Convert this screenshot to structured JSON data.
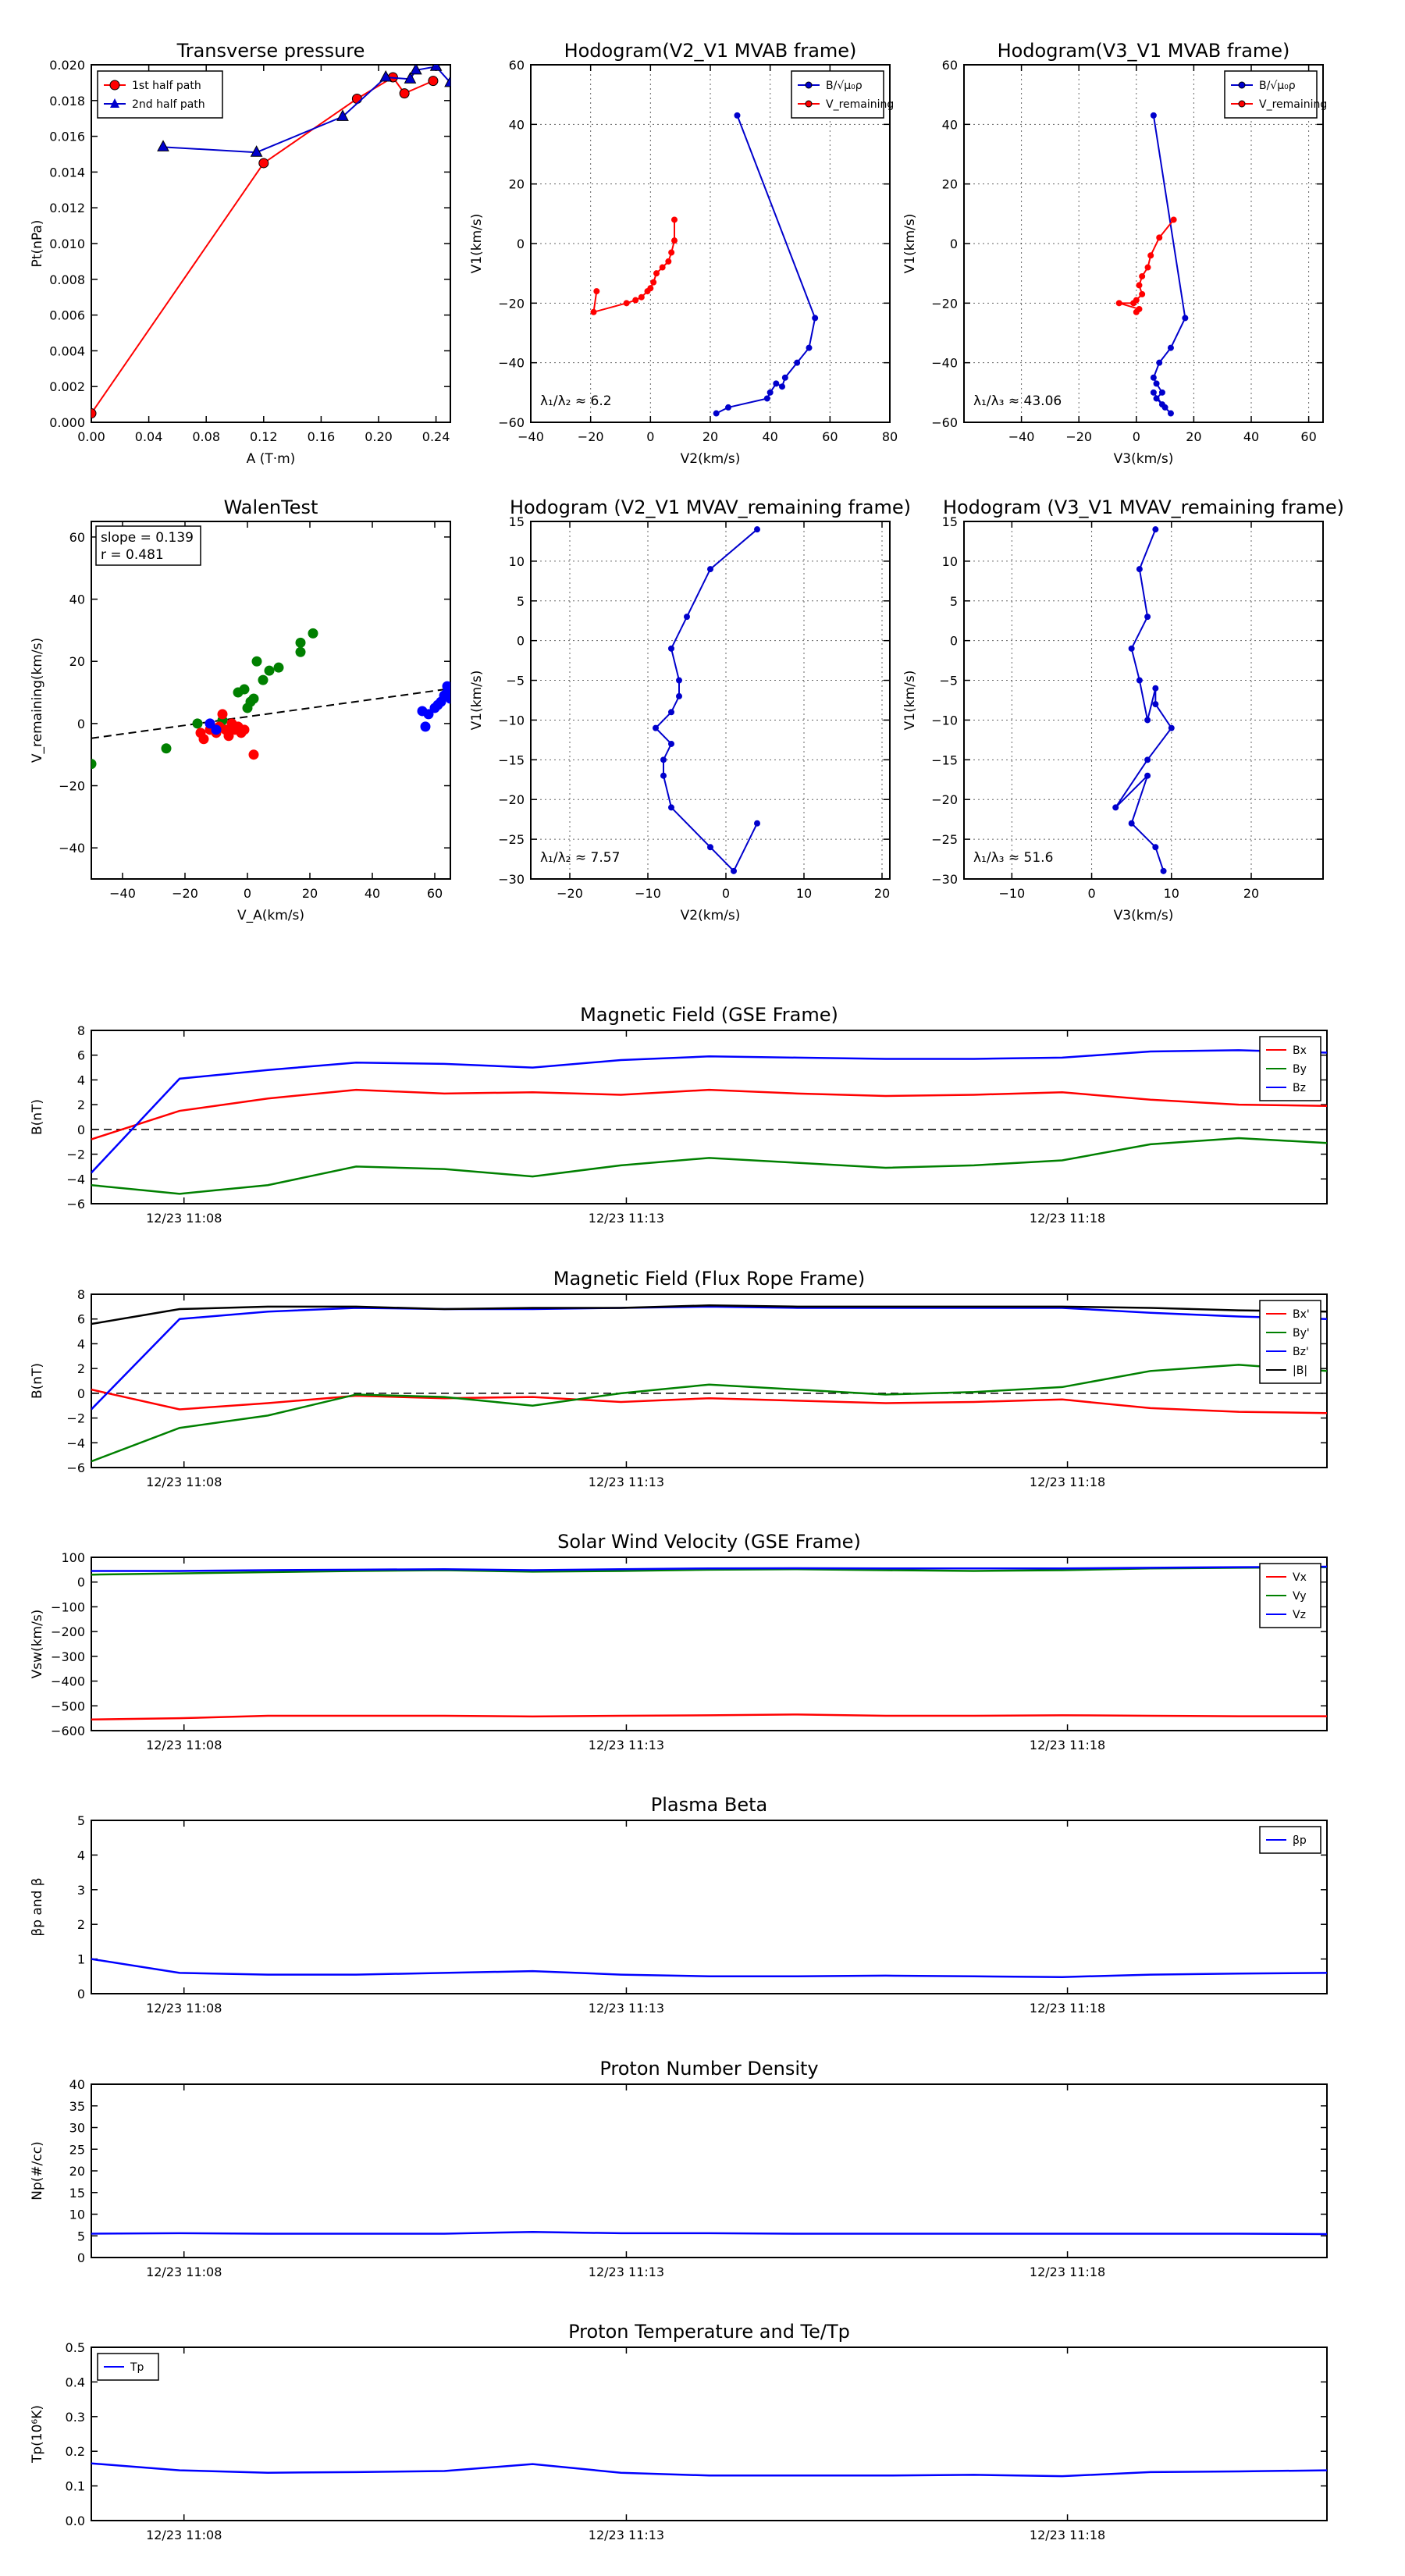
{
  "chart_data": [
    {
      "id": "tp",
      "type": "scatter",
      "title": "Transverse pressure",
      "xlabel": "A (T·m)",
      "ylabel": "Pt(nPa)",
      "xlim": [
        0,
        0.25
      ],
      "ylim": [
        0,
        0.02
      ],
      "xticks": [
        0.0,
        0.04,
        0.08,
        0.12,
        0.16,
        0.2,
        0.24
      ],
      "xtick_labels": [
        "0.00",
        "0.04",
        "0.08",
        "0.12",
        "0.16",
        "0.20",
        "0.24"
      ],
      "yticks": [
        0,
        0.002,
        0.004,
        0.006,
        0.008,
        0.01,
        0.012,
        0.014,
        0.016,
        0.018,
        0.02
      ],
      "ytick_labels": [
        "0.000",
        "0.002",
        "0.004",
        "0.006",
        "0.008",
        "0.010",
        "0.012",
        "0.014",
        "0.016",
        "0.018",
        "0.020"
      ],
      "grid": false,
      "legend": "top-left",
      "series": [
        {
          "name": "1st half path",
          "color": "#ff0000",
          "marker": "circle",
          "x": [
            0.0,
            0.12,
            0.185,
            0.21,
            0.218,
            0.238
          ],
          "y": [
            0.0005,
            0.0145,
            0.0181,
            0.0193,
            0.0184,
            0.0191
          ]
        },
        {
          "name": "2nd half path",
          "color": "#0000cc",
          "marker": "triangle",
          "x": [
            0.05,
            0.115,
            0.175,
            0.205,
            0.222,
            0.226,
            0.24,
            0.25
          ],
          "y": [
            0.0154,
            0.0151,
            0.0171,
            0.0193,
            0.0192,
            0.0197,
            0.0199,
            0.019
          ]
        }
      ]
    },
    {
      "id": "hodo21",
      "type": "line",
      "title": "Hodogram(V2_V1 MVAB frame)",
      "xlabel": "V2(km/s)",
      "ylabel": "V1(km/s)",
      "xlim": [
        -40,
        80
      ],
      "ylim": [
        -60,
        60
      ],
      "xticks": [
        -40,
        -20,
        0,
        20,
        40,
        60,
        80
      ],
      "xtick_labels": [
        "−40",
        "−20",
        "0",
        "20",
        "40",
        "60",
        "80"
      ],
      "yticks": [
        -60,
        -40,
        -20,
        0,
        20,
        40,
        60
      ],
      "ytick_labels": [
        "−60",
        "−40",
        "−20",
        "0",
        "20",
        "40",
        "60"
      ],
      "grid": true,
      "legend": "top-right",
      "annotation": "λ₁/λ₂ ≈ 6.2",
      "series": [
        {
          "name": "B/√μ₀ρ",
          "color": "#0000cc",
          "x": [
            29,
            55,
            53,
            49,
            45,
            44,
            42,
            40,
            39,
            26,
            22
          ],
          "y": [
            43,
            -25,
            -35,
            -40,
            -45,
            -48,
            -47,
            -50,
            -52,
            -55,
            -57
          ]
        },
        {
          "name": "V_remaining",
          "color": "#ff0000",
          "x": [
            8,
            8,
            7,
            6,
            4,
            2,
            1,
            0,
            -1,
            -3,
            -5,
            -8,
            -19,
            -18
          ],
          "y": [
            8,
            1,
            -3,
            -6,
            -8,
            -10,
            -13,
            -15,
            -16,
            -18,
            -19,
            -20,
            -23,
            -16
          ]
        }
      ]
    },
    {
      "id": "hodo31",
      "type": "line",
      "title": "Hodogram(V3_V1 MVAB frame)",
      "xlabel": "V3(km/s)",
      "ylabel": "V1(km/s)",
      "xlim": [
        -60,
        65
      ],
      "ylim": [
        -60,
        60
      ],
      "xticks": [
        -40,
        -20,
        0,
        20,
        40,
        60
      ],
      "xtick_labels": [
        "−40",
        "−20",
        "0",
        "20",
        "40",
        "60"
      ],
      "yticks": [
        -60,
        -40,
        -20,
        0,
        20,
        40,
        60
      ],
      "ytick_labels": [
        "−60",
        "−40",
        "−20",
        "0",
        "20",
        "40",
        "60"
      ],
      "grid": true,
      "legend": "top-right",
      "annotation": "λ₁/λ₃ ≈ 43.06",
      "series": [
        {
          "name": "B/√μ₀ρ",
          "color": "#0000cc",
          "x": [
            6,
            17,
            12,
            8,
            6,
            7,
            9,
            7,
            10,
            12,
            9,
            6
          ],
          "y": [
            43,
            -25,
            -35,
            -40,
            -45,
            -47,
            -50,
            -52,
            -55,
            -57,
            -54,
            -50
          ]
        },
        {
          "name": "V_remaining",
          "color": "#ff0000",
          "x": [
            13,
            8,
            5,
            4,
            2,
            1,
            2,
            0,
            -1,
            -6,
            1,
            0
          ],
          "y": [
            8,
            2,
            -4,
            -8,
            -11,
            -14,
            -17,
            -19,
            -20,
            -20,
            -22,
            -23
          ]
        }
      ]
    },
    {
      "id": "walen",
      "type": "scatter",
      "title": "WalenTest",
      "xlabel": "V_A(km/s)",
      "ylabel": "V_remaining(km/s)",
      "xlim": [
        -50,
        65
      ],
      "ylim": [
        -50,
        65
      ],
      "xticks": [
        -40,
        -20,
        0,
        20,
        40,
        60
      ],
      "xtick_labels": [
        "−40",
        "−20",
        "0",
        "20",
        "40",
        "60"
      ],
      "yticks": [
        -40,
        -20,
        0,
        20,
        40,
        60
      ],
      "ytick_labels": [
        "−40",
        "−20",
        "0",
        "20",
        "40",
        "60"
      ],
      "grid": false,
      "annotation": [
        "slope = 0.139",
        "r = 0.481"
      ],
      "fit": {
        "slope": 0.139,
        "intercept": 2.2
      },
      "series": [
        {
          "color": "#008000",
          "x": [
            -50,
            -26,
            -16,
            -8,
            -3,
            -1,
            0,
            1,
            2,
            3,
            5,
            7,
            10,
            17,
            17,
            21
          ],
          "y": [
            -13,
            -8,
            0,
            1,
            10,
            11,
            5,
            7,
            8,
            20,
            14,
            17,
            18,
            23,
            26,
            29
          ]
        },
        {
          "color": "#ff0000",
          "x": [
            -15,
            -14,
            -12,
            -10,
            -9,
            -7,
            -6,
            -5,
            -4,
            -3,
            -2,
            -1,
            2,
            -8
          ],
          "y": [
            -3,
            -5,
            -2,
            -3,
            -1,
            -2,
            -4,
            0,
            -2,
            -1,
            -3,
            -2,
            -10,
            3
          ]
        },
        {
          "color": "#0000ff",
          "x": [
            -12,
            -10,
            56,
            57,
            58,
            60,
            61,
            62,
            63,
            64,
            64,
            65
          ],
          "y": [
            0,
            -2,
            4,
            -1,
            3,
            5,
            6,
            7,
            9,
            10,
            12,
            8
          ]
        }
      ]
    },
    {
      "id": "mvav21",
      "type": "line",
      "title": "Hodogram (V2_V1 MVAV_remaining frame)",
      "xlabel": "V2(km/s)",
      "ylabel": "V1(km/s)",
      "xlim": [
        -25,
        21
      ],
      "ylim": [
        -30,
        15
      ],
      "xticks": [
        -20,
        -10,
        0,
        10,
        20
      ],
      "xtick_labels": [
        "−20",
        "−10",
        "0",
        "10",
        "20"
      ],
      "yticks": [
        -30,
        -25,
        -20,
        -15,
        -10,
        -5,
        0,
        5,
        10,
        15
      ],
      "ytick_labels": [
        "−30",
        "−25",
        "−20",
        "−15",
        "−10",
        "−5",
        "0",
        "5",
        "10",
        "15"
      ],
      "grid": true,
      "annotation": "λ₁/λ₂ ≈ 7.57",
      "series": [
        {
          "color": "#0000cc",
          "x": [
            4,
            -2,
            -5,
            -7,
            -6,
            -6,
            -7,
            -9,
            -7,
            -8,
            -8,
            -7,
            -2,
            1,
            4
          ],
          "y": [
            14,
            9,
            3,
            -1,
            -5,
            -7,
            -9,
            -11,
            -13,
            -15,
            -17,
            -21,
            -26,
            -29,
            -23
          ]
        }
      ]
    },
    {
      "id": "mvav31",
      "type": "line",
      "title": "Hodogram (V3_V1 MVAV_remaining frame)",
      "xlabel": "V3(km/s)",
      "ylabel": "V1(km/s)",
      "xlim": [
        -16,
        29
      ],
      "ylim": [
        -30,
        15
      ],
      "xticks": [
        -10,
        0,
        10,
        20
      ],
      "xtick_labels": [
        "−10",
        "0",
        "10",
        "20"
      ],
      "yticks": [
        -30,
        -25,
        -20,
        -15,
        -10,
        -5,
        0,
        5,
        10,
        15
      ],
      "ytick_labels": [
        "−30",
        "−25",
        "−20",
        "−15",
        "−10",
        "−5",
        "0",
        "5",
        "10",
        "15"
      ],
      "grid": true,
      "annotation": "λ₁/λ₃ ≈ 51.6",
      "series": [
        {
          "color": "#0000cc",
          "x": [
            8,
            6,
            7,
            5,
            6,
            7,
            8,
            8,
            10,
            7,
            3,
            7,
            5,
            8,
            9
          ],
          "y": [
            14,
            9,
            3,
            -1,
            -5,
            -10,
            -6,
            -8,
            -11,
            -15,
            -21,
            -17,
            -23,
            -26,
            -29
          ]
        }
      ]
    },
    {
      "id": "bgse",
      "type": "line",
      "title": "Magnetic Field (GSE Frame)",
      "ylabel": "B(nT)",
      "ylim": [
        -6,
        8
      ],
      "yticks": [
        -6,
        -4,
        -2,
        0,
        2,
        4,
        6,
        8
      ],
      "ytick_labels": [
        "−6",
        "−4",
        "−2",
        "0",
        "2",
        "4",
        "6",
        "8"
      ],
      "xticks_labels": [
        "12/23 11:08",
        "12/23 11:13",
        "12/23 11:18"
      ],
      "zero_line": true,
      "legend": "top-right",
      "series": [
        {
          "name": "Bx",
          "color": "#ff0000",
          "values": [
            -0.8,
            1.5,
            2.5,
            3.2,
            2.9,
            3.0,
            2.8,
            3.2,
            2.9,
            2.7,
            2.8,
            3.0,
            2.4,
            2.0,
            1.9
          ]
        },
        {
          "name": "By",
          "color": "#008000",
          "values": [
            -4.5,
            -5.2,
            -4.5,
            -3.0,
            -3.2,
            -3.8,
            -2.9,
            -2.3,
            -2.7,
            -3.1,
            -2.9,
            -2.5,
            -1.2,
            -0.7,
            -1.1
          ]
        },
        {
          "name": "Bz",
          "color": "#0000ff",
          "values": [
            -3.5,
            4.1,
            4.8,
            5.4,
            5.3,
            5.0,
            5.6,
            5.9,
            5.8,
            5.7,
            5.7,
            5.8,
            6.3,
            6.4,
            6.2
          ]
        }
      ]
    },
    {
      "id": "bfr",
      "type": "line",
      "title": "Magnetic Field (Flux Rope Frame)",
      "ylabel": "B(nT)",
      "ylim": [
        -6,
        8
      ],
      "yticks": [
        -6,
        -4,
        -2,
        0,
        2,
        4,
        6,
        8
      ],
      "ytick_labels": [
        "−6",
        "−4",
        "−2",
        "0",
        "2",
        "4",
        "6",
        "8"
      ],
      "xticks_labels": [
        "12/23 11:08",
        "12/23 11:13",
        "12/23 11:18"
      ],
      "zero_line": true,
      "legend": "top-right",
      "series": [
        {
          "name": "Bx'",
          "color": "#ff0000",
          "values": [
            0.3,
            -1.3,
            -0.8,
            -0.2,
            -0.4,
            -0.3,
            -0.7,
            -0.4,
            -0.6,
            -0.8,
            -0.7,
            -0.5,
            -1.2,
            -1.5,
            -1.6
          ]
        },
        {
          "name": "By'",
          "color": "#008000",
          "values": [
            -5.5,
            -2.8,
            -1.8,
            -0.1,
            -0.3,
            -1.0,
            0.0,
            0.7,
            0.3,
            -0.1,
            0.1,
            0.5,
            1.8,
            2.3,
            1.8
          ]
        },
        {
          "name": "Bz'",
          "color": "#0000ff",
          "values": [
            -1.3,
            6.0,
            6.6,
            6.9,
            6.8,
            6.8,
            6.9,
            7.0,
            6.9,
            6.9,
            6.9,
            6.9,
            6.5,
            6.2,
            6.0
          ]
        },
        {
          "name": "|B|",
          "color": "#000000",
          "values": [
            5.6,
            6.8,
            7.0,
            7.0,
            6.8,
            6.9,
            6.9,
            7.1,
            7.0,
            7.0,
            7.0,
            7.0,
            6.9,
            6.7,
            6.6
          ]
        }
      ]
    },
    {
      "id": "vsw",
      "type": "line",
      "title": "Solar Wind Velocity (GSE Frame)",
      "ylabel": "Vsw(km/s)",
      "ylim": [
        -600,
        100
      ],
      "yticks": [
        -600,
        -500,
        -400,
        -300,
        -200,
        -100,
        0,
        100
      ],
      "ytick_labels": [
        "−600",
        "−500",
        "−400",
        "−300",
        "−200",
        "−100",
        "0",
        "100"
      ],
      "xticks_labels": [
        "12/23 11:08",
        "12/23 11:13",
        "12/23 11:18"
      ],
      "legend": "top-right",
      "series": [
        {
          "name": "Vx",
          "color": "#ff0000",
          "values": [
            -555,
            -550,
            -540,
            -540,
            -540,
            -543,
            -540,
            -538,
            -535,
            -540,
            -540,
            -538,
            -540,
            -542,
            -542
          ]
        },
        {
          "name": "Vy",
          "color": "#008000",
          "values": [
            30,
            35,
            40,
            45,
            48,
            42,
            45,
            50,
            52,
            48,
            45,
            48,
            55,
            58,
            60
          ]
        },
        {
          "name": "Vz",
          "color": "#0000ff",
          "values": [
            45,
            45,
            48,
            50,
            52,
            48,
            52,
            55,
            56,
            55,
            55,
            55,
            58,
            60,
            62
          ]
        }
      ]
    },
    {
      "id": "beta",
      "type": "line",
      "title": "Plasma Beta",
      "ylabel": "βp and β",
      "ylim": [
        0,
        5
      ],
      "yticks": [
        0,
        1,
        2,
        3,
        4,
        5
      ],
      "ytick_labels": [
        "0",
        "1",
        "2",
        "3",
        "4",
        "5"
      ],
      "xticks_labels": [
        "12/23 11:08",
        "12/23 11:13",
        "12/23 11:18"
      ],
      "legend": "top-right",
      "series": [
        {
          "name": "βp",
          "color": "#0000ff",
          "values": [
            1.0,
            0.6,
            0.55,
            0.55,
            0.6,
            0.65,
            0.55,
            0.5,
            0.5,
            0.52,
            0.5,
            0.48,
            0.55,
            0.58,
            0.6
          ]
        }
      ]
    },
    {
      "id": "np",
      "type": "line",
      "title": "Proton Number Density",
      "ylabel": "Np(#/cc)",
      "ylim": [
        0,
        40
      ],
      "yticks": [
        0,
        5,
        10,
        15,
        20,
        25,
        30,
        35,
        40
      ],
      "ytick_labels": [
        "0",
        "5",
        "10",
        "15",
        "20",
        "25",
        "30",
        "35",
        "40"
      ],
      "xticks_labels": [
        "12/23 11:08",
        "12/23 11:13",
        "12/23 11:18"
      ],
      "series": [
        {
          "color": "#0000ff",
          "values": [
            5.5,
            5.6,
            5.5,
            5.5,
            5.5,
            5.9,
            5.6,
            5.6,
            5.5,
            5.5,
            5.5,
            5.5,
            5.5,
            5.5,
            5.4
          ]
        }
      ]
    },
    {
      "id": "tp2",
      "type": "line",
      "title": "Proton Temperature and Te/Tp",
      "ylabel": "Tp(10⁶K)",
      "ylim": [
        0,
        0.5
      ],
      "yticks": [
        0.0,
        0.1,
        0.2,
        0.3,
        0.4,
        0.5
      ],
      "ytick_labels": [
        "0.0",
        "0.1",
        "0.2",
        "0.3",
        "0.4",
        "0.5"
      ],
      "xticks_labels": [
        "12/23 11:08",
        "12/23 11:13",
        "12/23 11:18"
      ],
      "legend": "top-left",
      "series": [
        {
          "name": "Tp",
          "color": "#0000ff",
          "values": [
            0.165,
            0.145,
            0.138,
            0.14,
            0.143,
            0.163,
            0.138,
            0.13,
            0.13,
            0.13,
            0.132,
            0.128,
            0.14,
            0.142,
            0.145
          ]
        }
      ]
    }
  ]
}
